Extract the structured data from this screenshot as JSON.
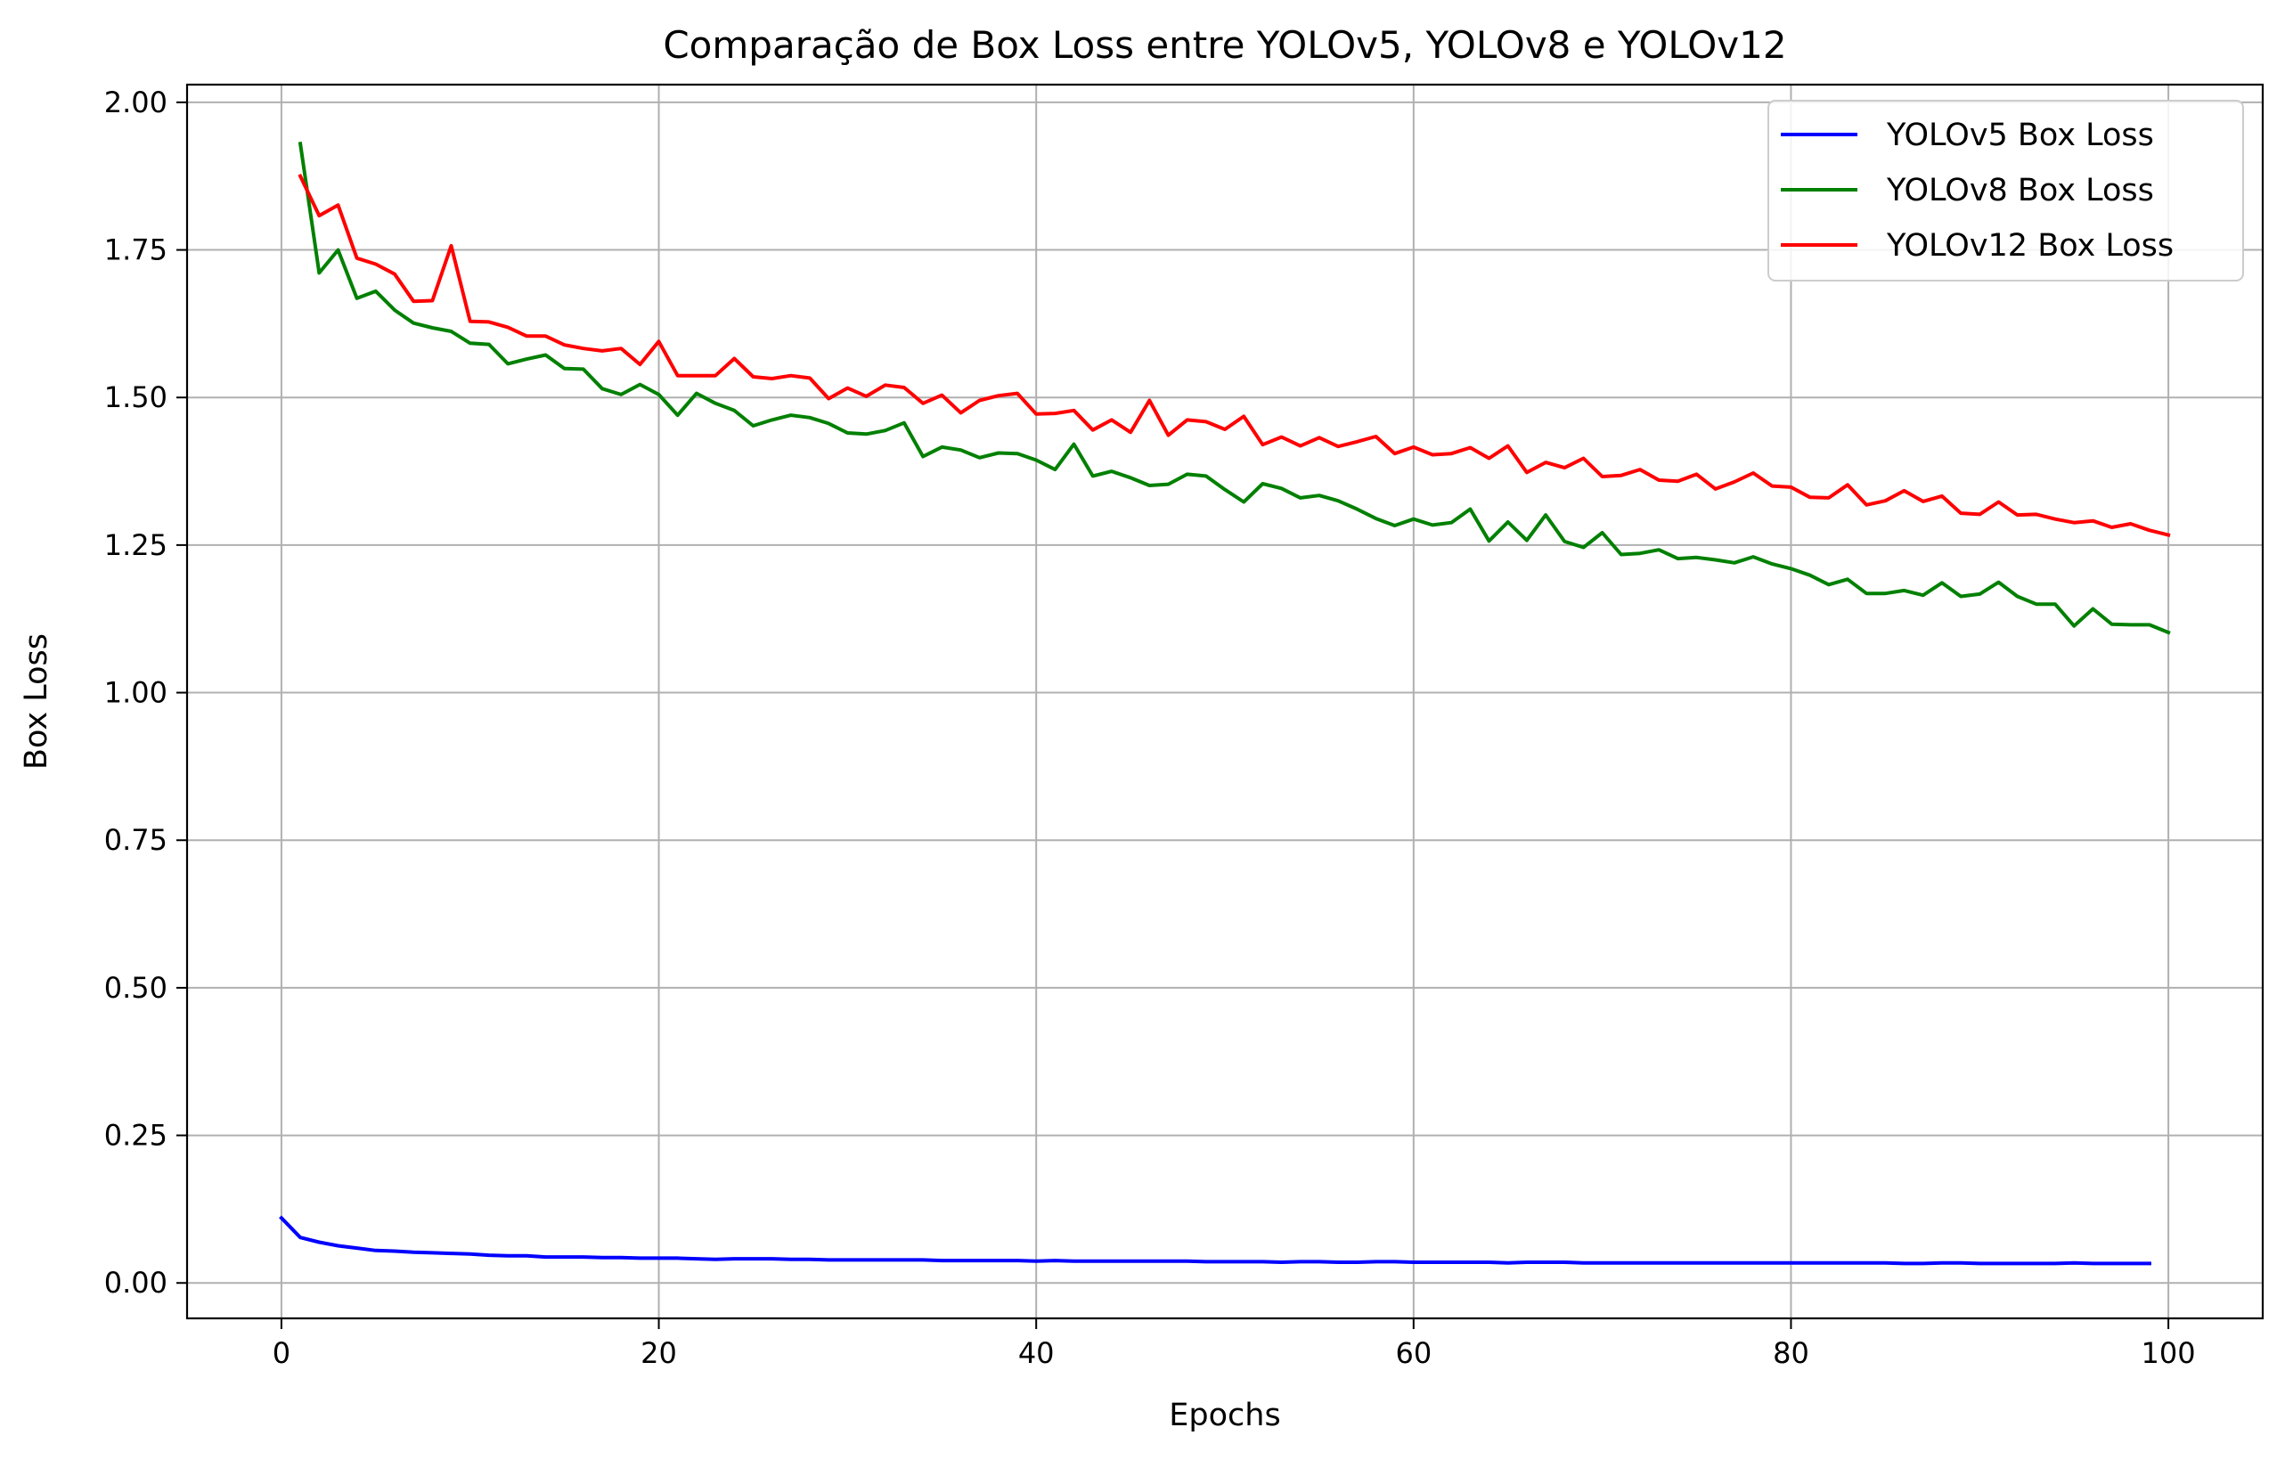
{
  "chart_data": {
    "type": "line",
    "title": "Comparação de Box Loss entre YOLOv5, YOLOv8 e YOLOv12",
    "xlabel": "Epochs",
    "ylabel": "Box Loss",
    "xlim": [
      -5,
      105
    ],
    "ylim": [
      -0.06,
      2.03
    ],
    "grid": true,
    "legend_position": "top-right",
    "xticks": [
      0,
      20,
      40,
      60,
      80,
      100
    ],
    "xtick_labels": [
      "0",
      "20",
      "40",
      "60",
      "80",
      "100"
    ],
    "yticks": [
      0.0,
      0.25,
      0.5,
      0.75,
      1.0,
      1.25,
      1.5,
      1.75,
      2.0
    ],
    "ytick_labels": [
      "0.00",
      "0.25",
      "0.50",
      "0.75",
      "1.00",
      "1.25",
      "1.50",
      "1.75",
      "2.00"
    ],
    "series": [
      {
        "name": "YOLOv5 Box Loss",
        "color": "#0000ff",
        "x_start": 0,
        "values": [
          0.11,
          0.077,
          0.069,
          0.063,
          0.059,
          0.055,
          0.054,
          0.052,
          0.051,
          0.05,
          0.049,
          0.047,
          0.046,
          0.046,
          0.044,
          0.044,
          0.044,
          0.043,
          0.043,
          0.042,
          0.042,
          0.042,
          0.041,
          0.04,
          0.041,
          0.041,
          0.041,
          0.04,
          0.04,
          0.039,
          0.039,
          0.039,
          0.039,
          0.039,
          0.039,
          0.038,
          0.038,
          0.038,
          0.038,
          0.038,
          0.037,
          0.038,
          0.037,
          0.037,
          0.037,
          0.037,
          0.037,
          0.037,
          0.037,
          0.036,
          0.036,
          0.036,
          0.036,
          0.035,
          0.036,
          0.036,
          0.035,
          0.035,
          0.036,
          0.036,
          0.035,
          0.035,
          0.035,
          0.035,
          0.035,
          0.034,
          0.035,
          0.035,
          0.035,
          0.034,
          0.034,
          0.034,
          0.034,
          0.034,
          0.034,
          0.034,
          0.034,
          0.034,
          0.034,
          0.034,
          0.034,
          0.034,
          0.034,
          0.034,
          0.034,
          0.034,
          0.033,
          0.033,
          0.034,
          0.034,
          0.033,
          0.033,
          0.033,
          0.033,
          0.033,
          0.034,
          0.033,
          0.033,
          0.033,
          0.033
        ]
      },
      {
        "name": "YOLOv8 Box Loss",
        "color": "#008000",
        "x_start": 1,
        "values": [
          1.93,
          1.711,
          1.75,
          1.668,
          1.68,
          1.648,
          1.626,
          1.618,
          1.612,
          1.592,
          1.59,
          1.557,
          1.565,
          1.572,
          1.549,
          1.548,
          1.515,
          1.505,
          1.522,
          1.505,
          1.47,
          1.507,
          1.49,
          1.478,
          1.452,
          1.462,
          1.47,
          1.466,
          1.456,
          1.44,
          1.438,
          1.444,
          1.457,
          1.4,
          1.416,
          1.411,
          1.398,
          1.406,
          1.405,
          1.394,
          1.378,
          1.421,
          1.367,
          1.375,
          1.364,
          1.351,
          1.353,
          1.37,
          1.367,
          1.344,
          1.323,
          1.354,
          1.346,
          1.33,
          1.334,
          1.325,
          1.311,
          1.295,
          1.283,
          1.294,
          1.284,
          1.288,
          1.311,
          1.257,
          1.289,
          1.258,
          1.301,
          1.256,
          1.246,
          1.271,
          1.234,
          1.236,
          1.242,
          1.227,
          1.229,
          1.225,
          1.22,
          1.23,
          1.218,
          1.21,
          1.199,
          1.183,
          1.192,
          1.168,
          1.168,
          1.173,
          1.165,
          1.186,
          1.163,
          1.167,
          1.187,
          1.163,
          1.15,
          1.15,
          1.113,
          1.142,
          1.116,
          1.115,
          1.115,
          1.102
        ]
      },
      {
        "name": "YOLOv12 Box Loss",
        "color": "#ff0000",
        "x_start": 1,
        "values": [
          1.875,
          1.808,
          1.826,
          1.736,
          1.726,
          1.709,
          1.663,
          1.664,
          1.757,
          1.629,
          1.628,
          1.619,
          1.604,
          1.604,
          1.589,
          1.583,
          1.579,
          1.583,
          1.556,
          1.595,
          1.537,
          1.537,
          1.537,
          1.566,
          1.535,
          1.532,
          1.537,
          1.533,
          1.498,
          1.516,
          1.502,
          1.521,
          1.517,
          1.49,
          1.504,
          1.474,
          1.495,
          1.503,
          1.507,
          1.472,
          1.473,
          1.478,
          1.445,
          1.462,
          1.441,
          1.495,
          1.436,
          1.462,
          1.459,
          1.446,
          1.468,
          1.42,
          1.433,
          1.418,
          1.432,
          1.417,
          1.425,
          1.434,
          1.405,
          1.416,
          1.403,
          1.405,
          1.415,
          1.397,
          1.418,
          1.373,
          1.39,
          1.381,
          1.397,
          1.366,
          1.368,
          1.378,
          1.36,
          1.358,
          1.37,
          1.345,
          1.357,
          1.372,
          1.35,
          1.348,
          1.331,
          1.33,
          1.352,
          1.318,
          1.325,
          1.342,
          1.324,
          1.333,
          1.304,
          1.302,
          1.323,
          1.301,
          1.302,
          1.294,
          1.288,
          1.291,
          1.28,
          1.286,
          1.275,
          1.267
        ]
      }
    ]
  }
}
